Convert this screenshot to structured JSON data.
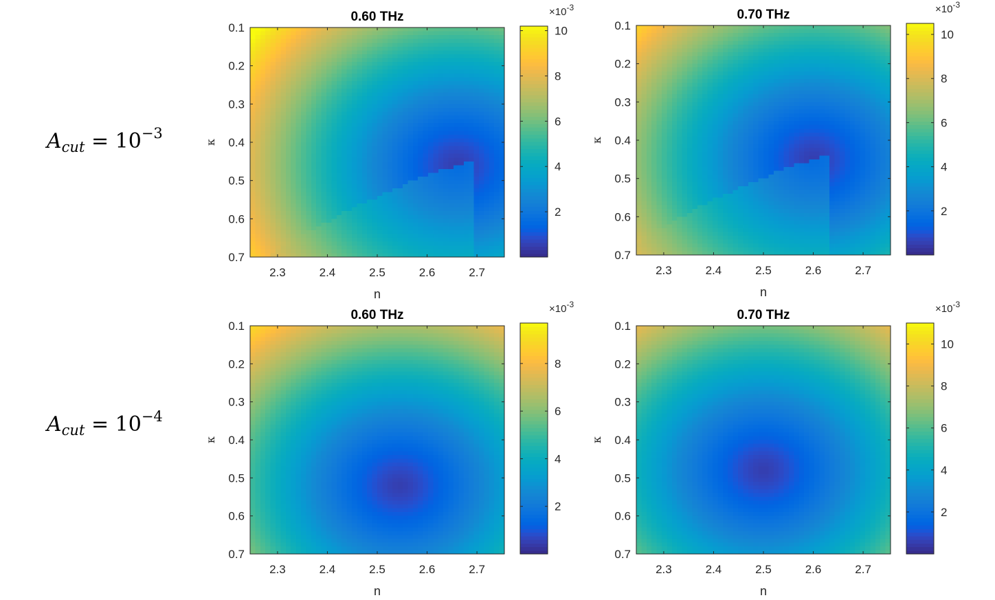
{
  "row_labels": [
    {
      "symbol": "A",
      "subscript": "cut",
      "equals": "=",
      "base": "10",
      "exponent": "−3"
    },
    {
      "symbol": "A",
      "subscript": "cut",
      "equals": "=",
      "base": "10",
      "exponent": "−4"
    }
  ],
  "chart_data": [
    {
      "type": "heatmap",
      "title": "0.60 THz",
      "xlabel": "n",
      "ylabel": "κ",
      "xlim": [
        2.245,
        2.755
      ],
      "ylim": [
        0.1,
        0.7
      ],
      "xticks": [
        2.3,
        2.4,
        2.5,
        2.6,
        2.7
      ],
      "yticks": [
        0.1,
        0.2,
        0.3,
        0.4,
        0.5,
        0.6,
        0.7
      ],
      "grid": {
        "nx": 50,
        "ny": 60
      },
      "minimum": {
        "n": 2.66,
        "kappa": 0.46
      },
      "colorbar": {
        "range": [
          0.0,
          0.0102
        ],
        "ticks": [
          2,
          4,
          6,
          8,
          10
        ],
        "exponent_label": "×10-3"
      },
      "branch_cut": true
    },
    {
      "type": "heatmap",
      "title": "0.70 THz",
      "xlabel": "n",
      "ylabel": "κ",
      "xlim": [
        2.245,
        2.755
      ],
      "ylim": [
        0.1,
        0.7
      ],
      "xticks": [
        2.3,
        2.4,
        2.5,
        2.6,
        2.7
      ],
      "yticks": [
        0.1,
        0.2,
        0.3,
        0.4,
        0.5,
        0.6,
        0.7
      ],
      "grid": {
        "nx": 50,
        "ny": 60
      },
      "minimum": {
        "n": 2.6,
        "kappa": 0.45
      },
      "colorbar": {
        "range": [
          0.0,
          0.0105
        ],
        "ticks": [
          2,
          4,
          6,
          8,
          10
        ],
        "exponent_label": "×10-3"
      },
      "branch_cut": true
    },
    {
      "type": "heatmap",
      "title": "0.60 THz",
      "xlabel": "n",
      "ylabel": "κ",
      "xlim": [
        2.245,
        2.755
      ],
      "ylim": [
        0.1,
        0.7
      ],
      "xticks": [
        2.3,
        2.4,
        2.5,
        2.6,
        2.7
      ],
      "yticks": [
        0.1,
        0.2,
        0.3,
        0.4,
        0.5,
        0.6,
        0.7
      ],
      "grid": {
        "nx": 50,
        "ny": 60
      },
      "minimum": {
        "n": 2.545,
        "kappa": 0.52
      },
      "colorbar": {
        "range": [
          0.0,
          0.0097
        ],
        "ticks": [
          2,
          4,
          6,
          8
        ],
        "exponent_label": "×10-3"
      },
      "branch_cut": false
    },
    {
      "type": "heatmap",
      "title": "0.70 THz",
      "xlabel": "n",
      "ylabel": "κ",
      "xlim": [
        2.245,
        2.755
      ],
      "ylim": [
        0.1,
        0.7
      ],
      "xticks": [
        2.3,
        2.4,
        2.5,
        2.6,
        2.7
      ],
      "yticks": [
        0.1,
        0.2,
        0.3,
        0.4,
        0.5,
        0.6,
        0.7
      ],
      "grid": {
        "nx": 50,
        "ny": 60
      },
      "minimum": {
        "n": 2.5,
        "kappa": 0.48
      },
      "colorbar": {
        "range": [
          0.0,
          0.011
        ],
        "ticks": [
          2,
          4,
          6,
          8,
          10
        ],
        "exponent_label": "×10-3"
      },
      "branch_cut": false
    }
  ]
}
